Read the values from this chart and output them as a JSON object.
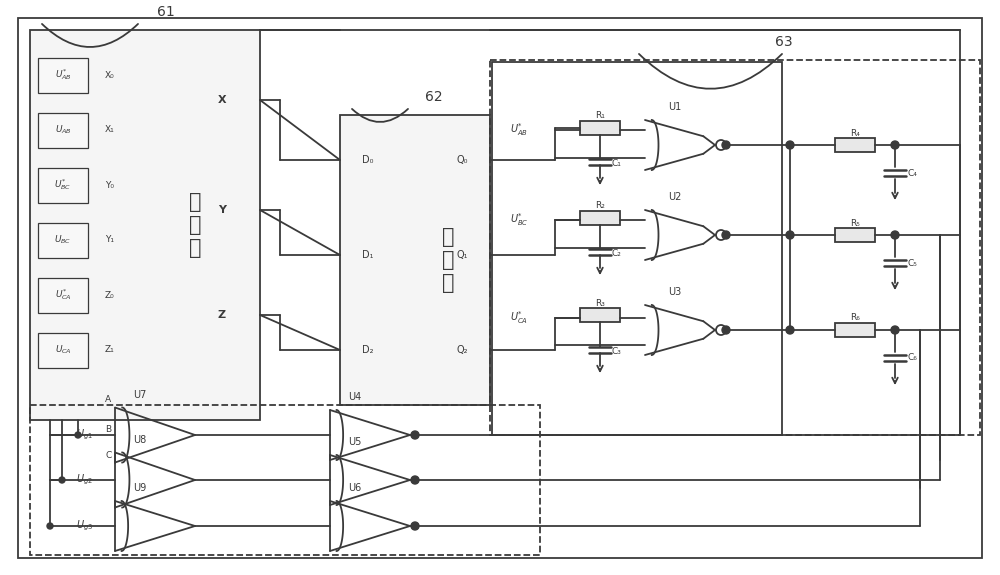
{
  "bg_color": "#ffffff",
  "line_color": "#3a3a3a",
  "fig_width": 10.0,
  "fig_height": 5.75,
  "label_61": "61",
  "label_62": "62",
  "label_63": "63"
}
